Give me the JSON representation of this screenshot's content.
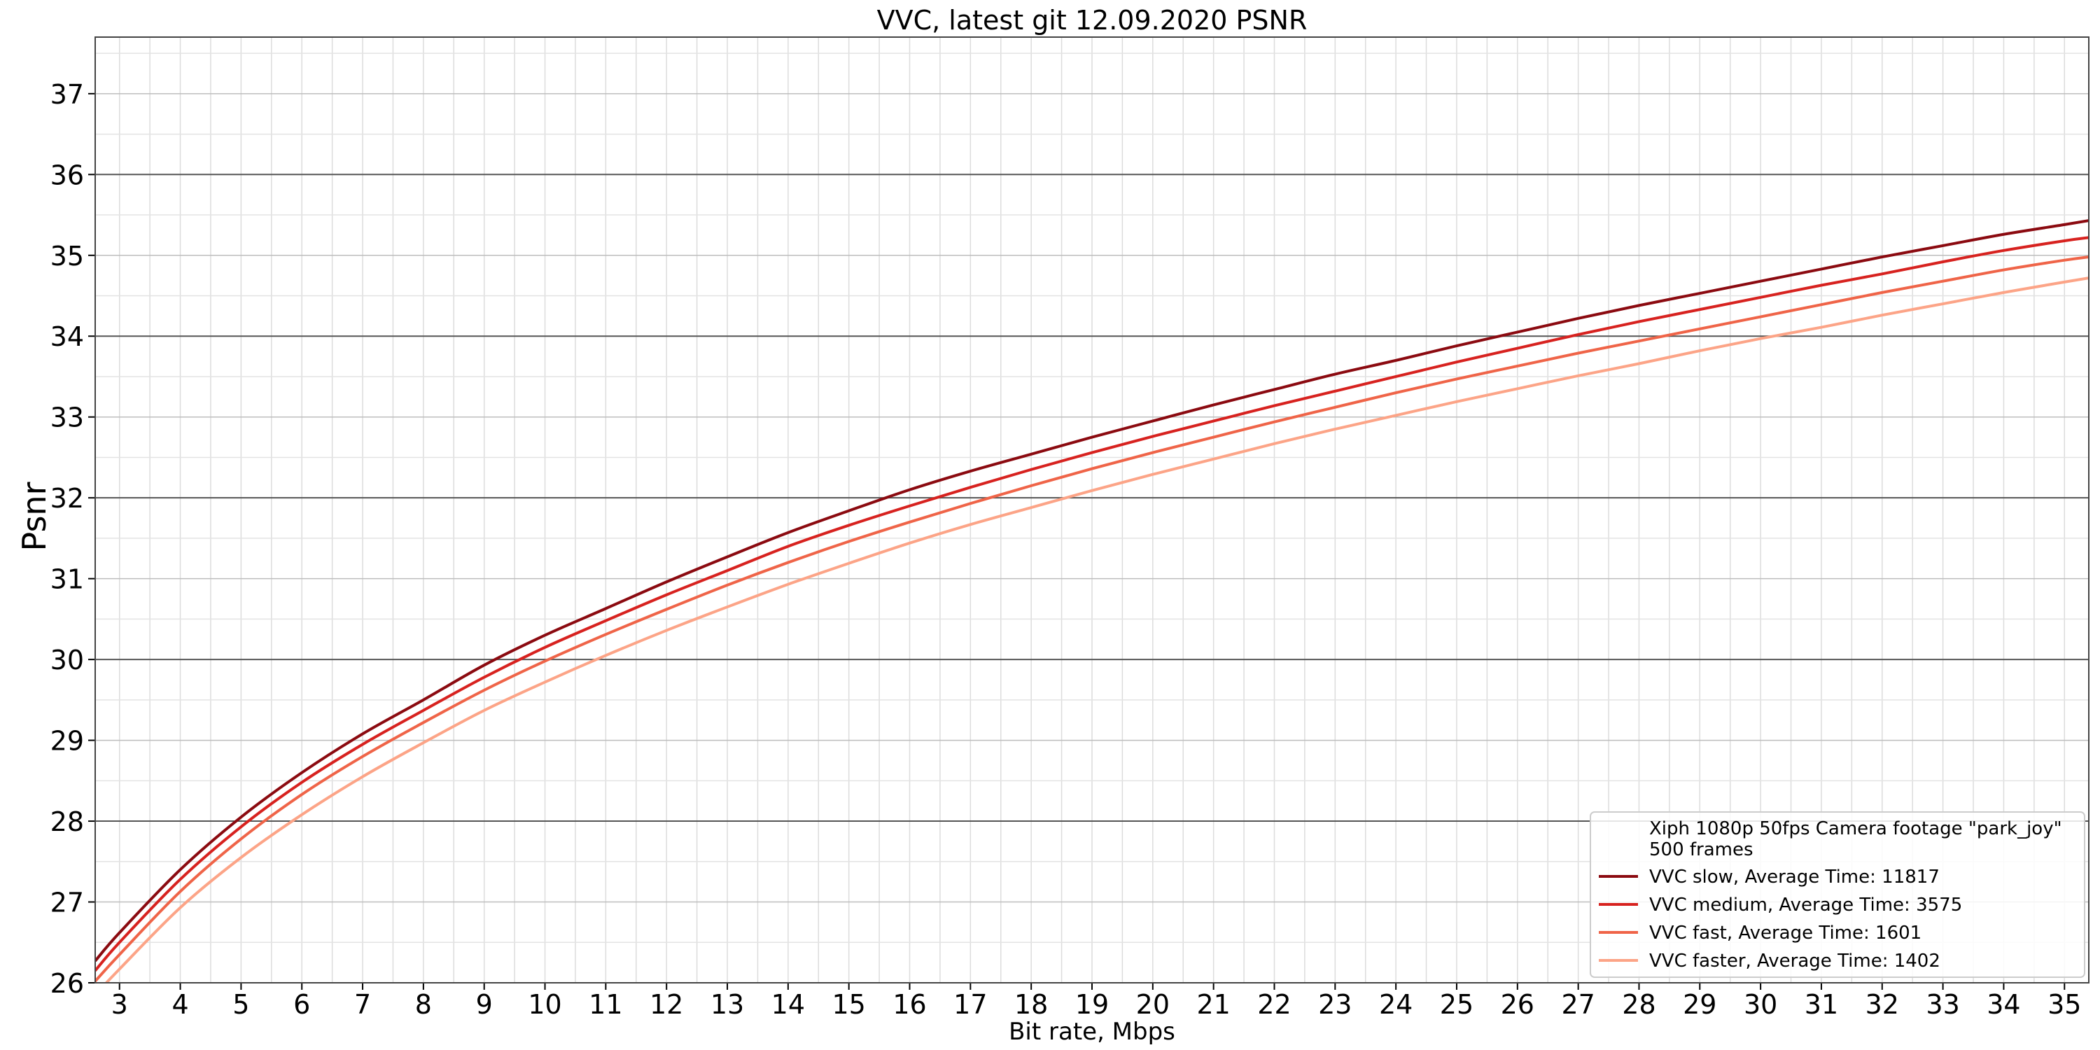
{
  "chart_data": {
    "type": "line",
    "title": "VVC, latest git 12.09.2020 PSNR",
    "xlabel": "Bit rate, Mbps",
    "ylabel": "Psnr",
    "xlim": [
      2.6,
      35.4
    ],
    "ylim": [
      26,
      37.7
    ],
    "x_ticks": [
      3,
      4,
      5,
      6,
      7,
      8,
      9,
      10,
      11,
      12,
      13,
      14,
      15,
      16,
      17,
      18,
      19,
      20,
      21,
      22,
      23,
      24,
      25,
      26,
      27,
      28,
      29,
      30,
      31,
      32,
      33,
      34,
      35
    ],
    "y_ticks": [
      26,
      27,
      28,
      29,
      30,
      31,
      32,
      33,
      34,
      35,
      36,
      37
    ],
    "grid": true,
    "legend_position": "lower-right",
    "legend_title": "Xiph 1080p 50fps Camera footage \"park_joy\"\n500 frames",
    "series": [
      {
        "name": "VVC slow, Average Time: 11817",
        "color": "#8b0a10",
        "x": [
          2.6,
          3,
          4,
          5,
          6,
          7,
          8,
          9,
          10,
          11,
          12,
          13,
          14,
          15,
          16,
          17,
          18,
          19,
          20,
          21,
          22,
          23,
          24,
          25,
          26,
          27,
          28,
          29,
          30,
          31,
          32,
          33,
          34,
          35,
          35.4
        ],
        "values": [
          26.27,
          26.62,
          27.4,
          28.05,
          28.6,
          29.08,
          29.5,
          29.93,
          30.3,
          30.63,
          30.96,
          31.27,
          31.57,
          31.84,
          32.1,
          32.33,
          32.54,
          32.75,
          32.95,
          33.15,
          33.34,
          33.53,
          33.7,
          33.88,
          34.05,
          34.22,
          34.38,
          34.53,
          34.68,
          34.83,
          34.98,
          35.12,
          35.26,
          35.38,
          35.43
        ]
      },
      {
        "name": "VVC medium, Average Time: 3575",
        "color": "#d7221f",
        "x": [
          2.6,
          3,
          4,
          5,
          6,
          7,
          8,
          9,
          10,
          11,
          12,
          13,
          14,
          15,
          16,
          17,
          18,
          19,
          20,
          21,
          22,
          23,
          24,
          25,
          26,
          27,
          28,
          29,
          30,
          31,
          32,
          33,
          34,
          35,
          35.4
        ],
        "values": [
          26.15,
          26.5,
          27.28,
          27.93,
          28.48,
          28.95,
          29.37,
          29.78,
          30.15,
          30.48,
          30.8,
          31.1,
          31.4,
          31.66,
          31.9,
          32.13,
          32.35,
          32.56,
          32.76,
          32.95,
          33.14,
          33.32,
          33.5,
          33.68,
          33.85,
          34.02,
          34.18,
          34.33,
          34.48,
          34.63,
          34.77,
          34.92,
          35.06,
          35.18,
          35.22
        ]
      },
      {
        "name": "VVC fast, Average Time: 1601",
        "color": "#ef6448",
        "x": [
          2.6,
          3,
          4,
          5,
          6,
          7,
          8,
          9,
          10,
          11,
          12,
          13,
          14,
          15,
          16,
          17,
          18,
          19,
          20,
          21,
          22,
          23,
          24,
          25,
          26,
          27,
          28,
          29,
          30,
          31,
          32,
          33,
          34,
          35,
          35.4
        ],
        "values": [
          26.02,
          26.35,
          27.13,
          27.78,
          28.33,
          28.8,
          29.22,
          29.62,
          29.98,
          30.31,
          30.62,
          30.92,
          31.2,
          31.46,
          31.7,
          31.93,
          32.15,
          32.36,
          32.56,
          32.75,
          32.94,
          33.12,
          33.3,
          33.47,
          33.63,
          33.79,
          33.94,
          34.09,
          34.24,
          34.39,
          34.54,
          34.68,
          34.82,
          34.94,
          34.98
        ]
      },
      {
        "name": "VVC faster, Average Time: 1402",
        "color": "#fca487",
        "x": [
          2.6,
          3,
          4,
          5,
          6,
          7,
          8,
          9,
          10,
          11,
          12,
          13,
          14,
          15,
          16,
          17,
          18,
          19,
          20,
          21,
          22,
          23,
          24,
          25,
          26,
          27,
          28,
          29,
          30,
          31,
          32,
          33,
          34,
          35,
          35.4
        ],
        "values": [
          25.85,
          26.17,
          26.93,
          27.55,
          28.08,
          28.55,
          28.97,
          29.37,
          29.72,
          30.05,
          30.36,
          30.65,
          30.93,
          31.19,
          31.44,
          31.67,
          31.88,
          32.09,
          32.29,
          32.48,
          32.67,
          32.85,
          33.02,
          33.19,
          33.35,
          33.51,
          33.66,
          33.82,
          33.97,
          34.11,
          34.26,
          34.4,
          34.54,
          34.67,
          34.72
        ]
      }
    ]
  }
}
